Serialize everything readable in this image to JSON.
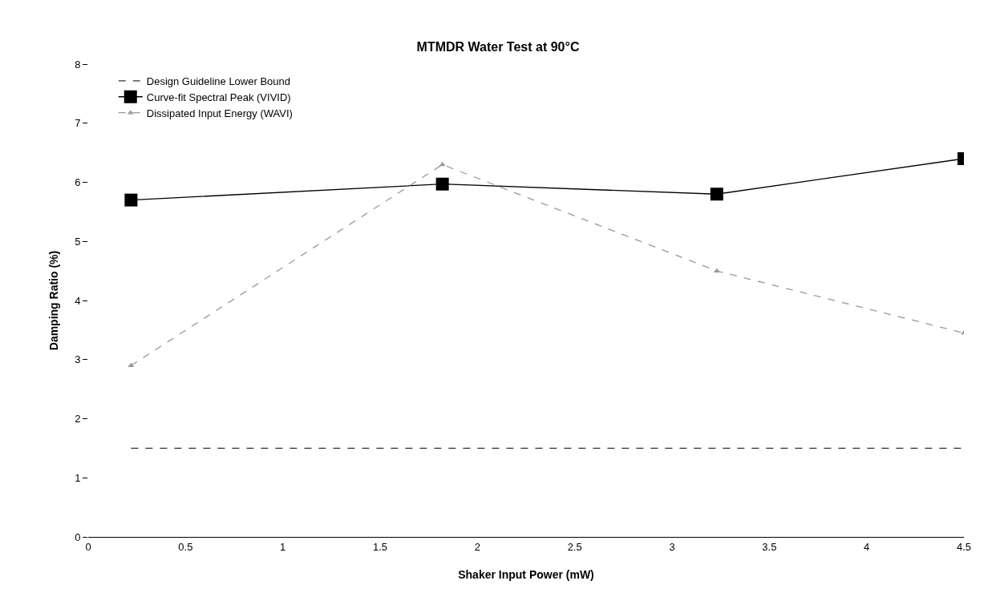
{
  "chart_data": {
    "type": "line",
    "title": "MTMDR Water Test at 90°C",
    "xlabel": "Shaker Input Power (mW)",
    "ylabel": "Damping Ratio (%)",
    "x": [
      0.22,
      1.82,
      3.23,
      4.5
    ],
    "series": [
      {
        "name": "Design Guideline Lower Bound",
        "color": "#333333",
        "x": [
          0.22,
          4.5
        ],
        "values": [
          1.5,
          1.5
        ],
        "marker": "none",
        "line_style": "dashed"
      },
      {
        "name": "Curve-fit Spectral Peak (VIVID)",
        "color": "#000000",
        "values": [
          5.7,
          5.97,
          5.8,
          6.4
        ],
        "marker": "square",
        "line_style": "solid"
      },
      {
        "name": "Dissipated Input Energy (WAVI)",
        "color": "#999999",
        "values": [
          2.9,
          6.3,
          4.5,
          3.45
        ],
        "marker": "triangle",
        "line_style": "dashed"
      }
    ],
    "xlim": [
      0,
      4.5
    ],
    "xticks": [
      0,
      0.5,
      1,
      1.5,
      2,
      2.5,
      3,
      3.5,
      4,
      4.5
    ],
    "ylim": [
      0,
      8
    ],
    "yticks": [
      0,
      1,
      2,
      3,
      4,
      5,
      6,
      7,
      8
    ],
    "grid": false,
    "legend": "top"
  }
}
